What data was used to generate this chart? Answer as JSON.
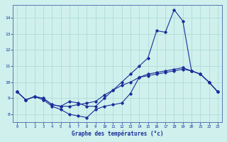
{
  "xlabel": "Graphe des températures (°c)",
  "background_color": "#cff0ec",
  "grid_color": "#aad8d4",
  "line_color": "#1a2e9a",
  "hours": [
    0,
    1,
    2,
    3,
    4,
    5,
    6,
    7,
    8,
    9,
    10,
    11,
    12,
    13,
    14,
    15,
    16,
    17,
    18,
    19,
    20,
    21,
    22,
    23
  ],
  "line1": [
    9.4,
    8.9,
    9.1,
    9.0,
    8.6,
    8.5,
    8.8,
    8.7,
    8.5,
    8.5,
    9.0,
    9.5,
    10.0,
    10.5,
    11.0,
    11.5,
    13.2,
    13.1,
    14.5,
    13.8,
    10.7,
    10.5,
    10.0,
    9.4
  ],
  "line2": [
    9.4,
    8.9,
    9.1,
    9.0,
    8.6,
    8.5,
    8.5,
    8.6,
    8.7,
    8.8,
    9.2,
    9.5,
    9.8,
    10.0,
    10.3,
    10.5,
    10.6,
    10.7,
    10.8,
    10.9,
    10.7,
    10.5,
    10.0,
    9.4
  ],
  "line3": [
    9.4,
    8.9,
    9.1,
    8.9,
    8.5,
    8.3,
    8.0,
    7.9,
    7.8,
    8.3,
    8.5,
    8.6,
    8.7,
    9.3,
    10.3,
    10.4,
    10.5,
    10.6,
    10.7,
    10.8,
    10.7,
    10.5,
    10.0,
    9.4
  ],
  "ylim": [
    7.5,
    14.8
  ],
  "yticks": [
    8,
    9,
    10,
    11,
    12,
    13,
    14
  ],
  "xlim": [
    -0.5,
    23.5
  ],
  "xticks": [
    0,
    1,
    2,
    3,
    4,
    5,
    6,
    7,
    8,
    9,
    10,
    11,
    12,
    13,
    14,
    15,
    16,
    17,
    18,
    19,
    20,
    21,
    22,
    23
  ]
}
